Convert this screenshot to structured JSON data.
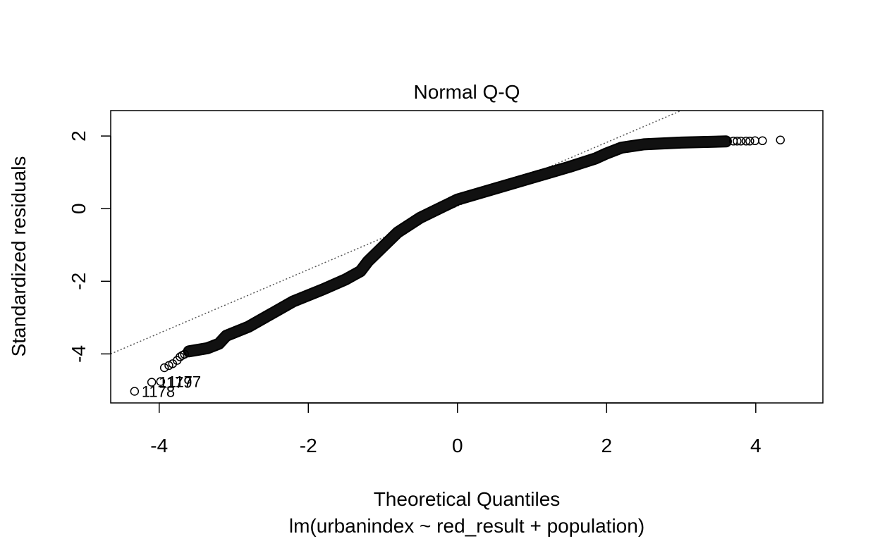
{
  "chart_data": {
    "type": "scatter",
    "title": "Normal Q-Q",
    "xlabel": "Theoretical Quantiles",
    "subtitle": "lm(urbanindex ~ red_result + population)",
    "ylabel": "Standardized residuals",
    "xlim": [
      -4.65,
      4.9
    ],
    "ylim": [
      -5.35,
      2.7
    ],
    "x_ticks": [
      -4,
      -2,
      0,
      2,
      4
    ],
    "x_tick_labels": [
      "-4",
      "-2",
      "0",
      "2",
      "4"
    ],
    "y_ticks": [
      -4,
      -2,
      0,
      2
    ],
    "y_tick_labels": [
      "-4",
      "-2",
      "0",
      "2"
    ],
    "grid": false,
    "reference_line": {
      "style": "dotted",
      "color": "#555555",
      "points": [
        [
          -4.65,
          -4.0
        ],
        [
          3.0,
          2.7
        ]
      ]
    },
    "curve_knots": [
      [
        -3.6,
        -3.93
      ],
      [
        -3.35,
        -3.84
      ],
      [
        -3.2,
        -3.72
      ],
      [
        -3.1,
        -3.5
      ],
      [
        -2.8,
        -3.25
      ],
      [
        -2.5,
        -2.9
      ],
      [
        -2.2,
        -2.55
      ],
      [
        -1.8,
        -2.22
      ],
      [
        -1.5,
        -1.95
      ],
      [
        -1.3,
        -1.72
      ],
      [
        -1.2,
        -1.45
      ],
      [
        -1.0,
        -1.05
      ],
      [
        -0.8,
        -0.65
      ],
      [
        -0.5,
        -0.25
      ],
      [
        -0.2,
        0.05
      ],
      [
        0.0,
        0.25
      ],
      [
        0.5,
        0.55
      ],
      [
        1.0,
        0.85
      ],
      [
        1.5,
        1.15
      ],
      [
        1.85,
        1.38
      ],
      [
        2.0,
        1.52
      ],
      [
        2.2,
        1.68
      ],
      [
        2.5,
        1.77
      ],
      [
        3.0,
        1.82
      ],
      [
        3.6,
        1.85
      ]
    ],
    "extreme_points": [
      {
        "x": -4.33,
        "y": -5.03
      },
      {
        "x": -4.1,
        "y": -4.78
      },
      {
        "x": -3.98,
        "y": -4.76
      },
      {
        "x": -3.93,
        "y": -4.38
      },
      {
        "x": -3.87,
        "y": -4.32
      },
      {
        "x": -3.82,
        "y": -4.27
      },
      {
        "x": -3.76,
        "y": -4.18
      },
      {
        "x": -3.72,
        "y": -4.08
      },
      {
        "x": -3.69,
        "y": -4.04
      },
      {
        "x": -3.66,
        "y": -4.01
      },
      {
        "x": 3.7,
        "y": 1.86
      },
      {
        "x": 3.75,
        "y": 1.86
      },
      {
        "x": 3.8,
        "y": 1.86
      },
      {
        "x": 3.87,
        "y": 1.86
      },
      {
        "x": 3.92,
        "y": 1.86
      },
      {
        "x": 3.99,
        "y": 1.87
      },
      {
        "x": 4.09,
        "y": 1.87
      },
      {
        "x": 4.33,
        "y": 1.89
      }
    ],
    "point_labels": [
      {
        "text": "1178",
        "x": -4.33,
        "y": -5.03
      },
      {
        "text": "1179",
        "x": -4.1,
        "y": -4.78
      },
      {
        "text": "1177",
        "x": -3.98,
        "y": -4.76
      }
    ]
  }
}
